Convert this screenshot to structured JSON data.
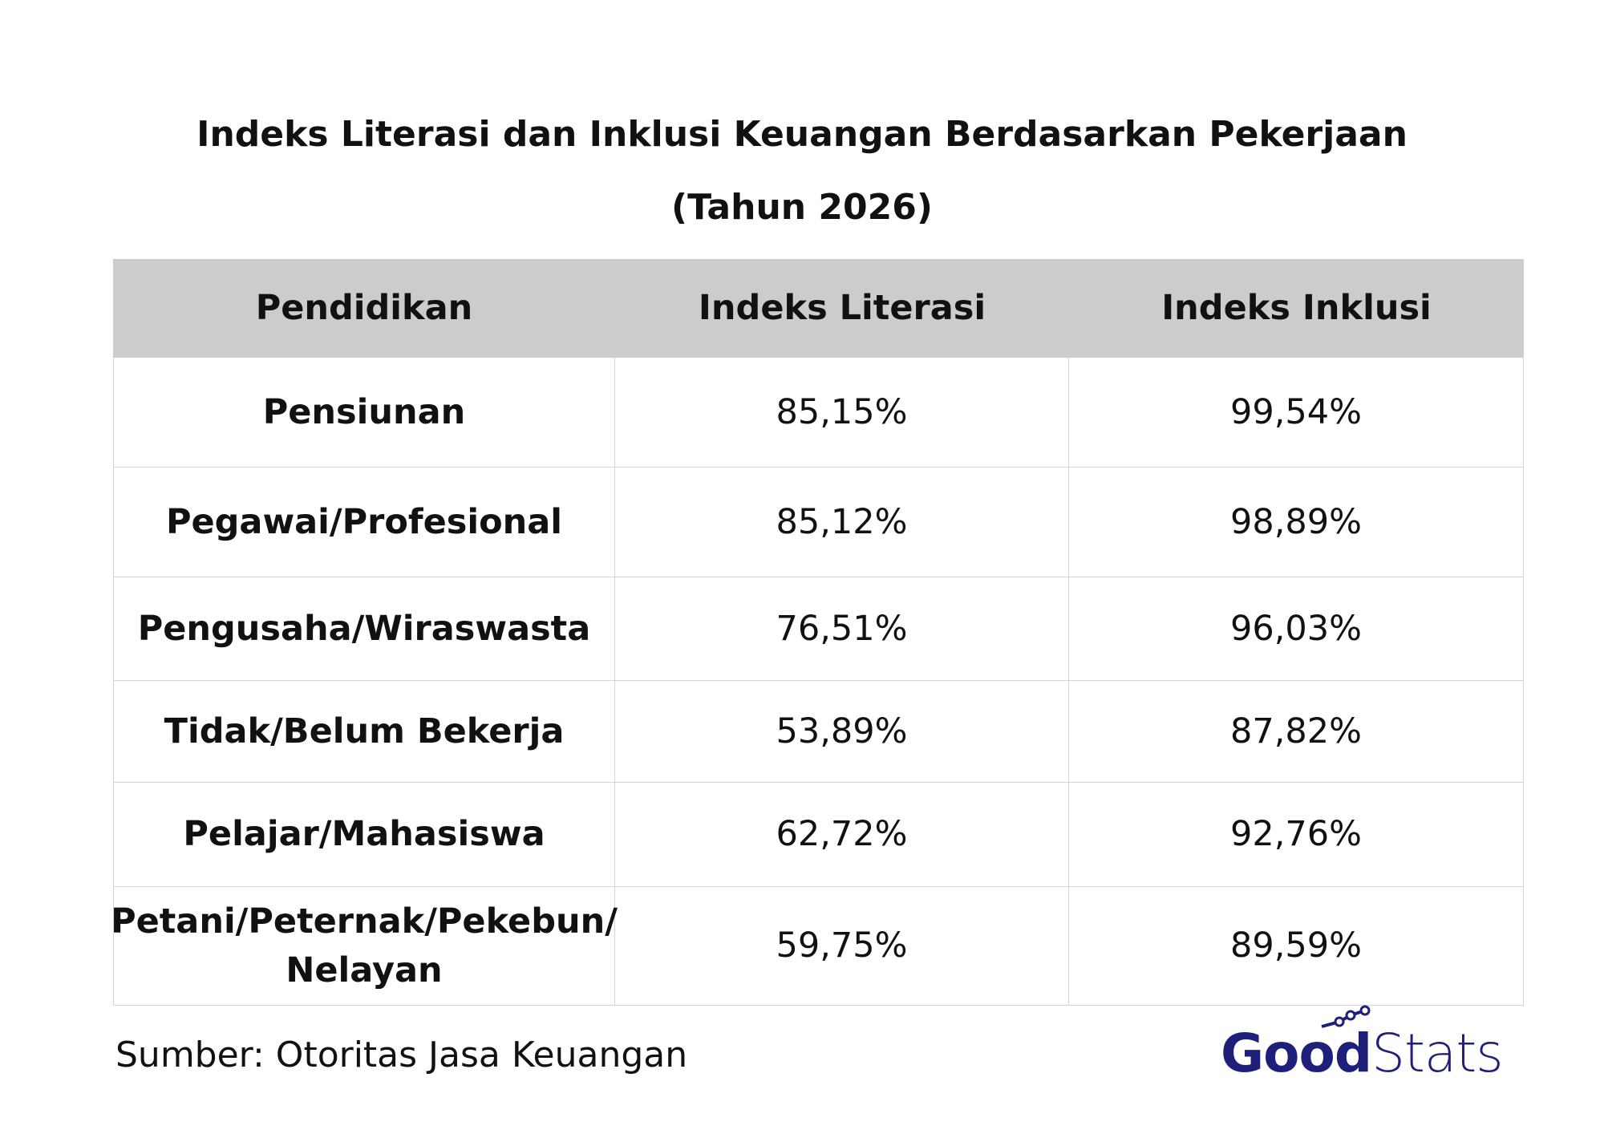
{
  "header": {
    "title": "Indeks Literasi dan Inklusi Keuangan Berdasarkan Pekerjaan",
    "subtitle": "(Tahun 2026)"
  },
  "table": {
    "columns": [
      "Pendidikan",
      "Indeks Literasi",
      "Indeks Inklusi"
    ],
    "rows": [
      [
        "Pensiunan",
        "85,15%",
        "99,54%"
      ],
      [
        "Pegawai/Profesional",
        "85,12%",
        "98,89%"
      ],
      [
        "Pengusaha/Wiraswasta",
        "76,51%",
        "96,03%"
      ],
      [
        "Tidak/Belum Bekerja",
        "53,89%",
        "87,82%"
      ],
      [
        "Pelajar/Mahasiswa",
        "62,72%",
        "92,76%"
      ],
      [
        "Petani/Peternak/Pekebun/ Nelayan",
        "59,75%",
        "89,59%"
      ]
    ]
  },
  "footer": {
    "source": "Sumber:  Otoritas Jasa Keuangan",
    "logo": {
      "bold": "Good",
      "light": "Stats"
    }
  }
}
